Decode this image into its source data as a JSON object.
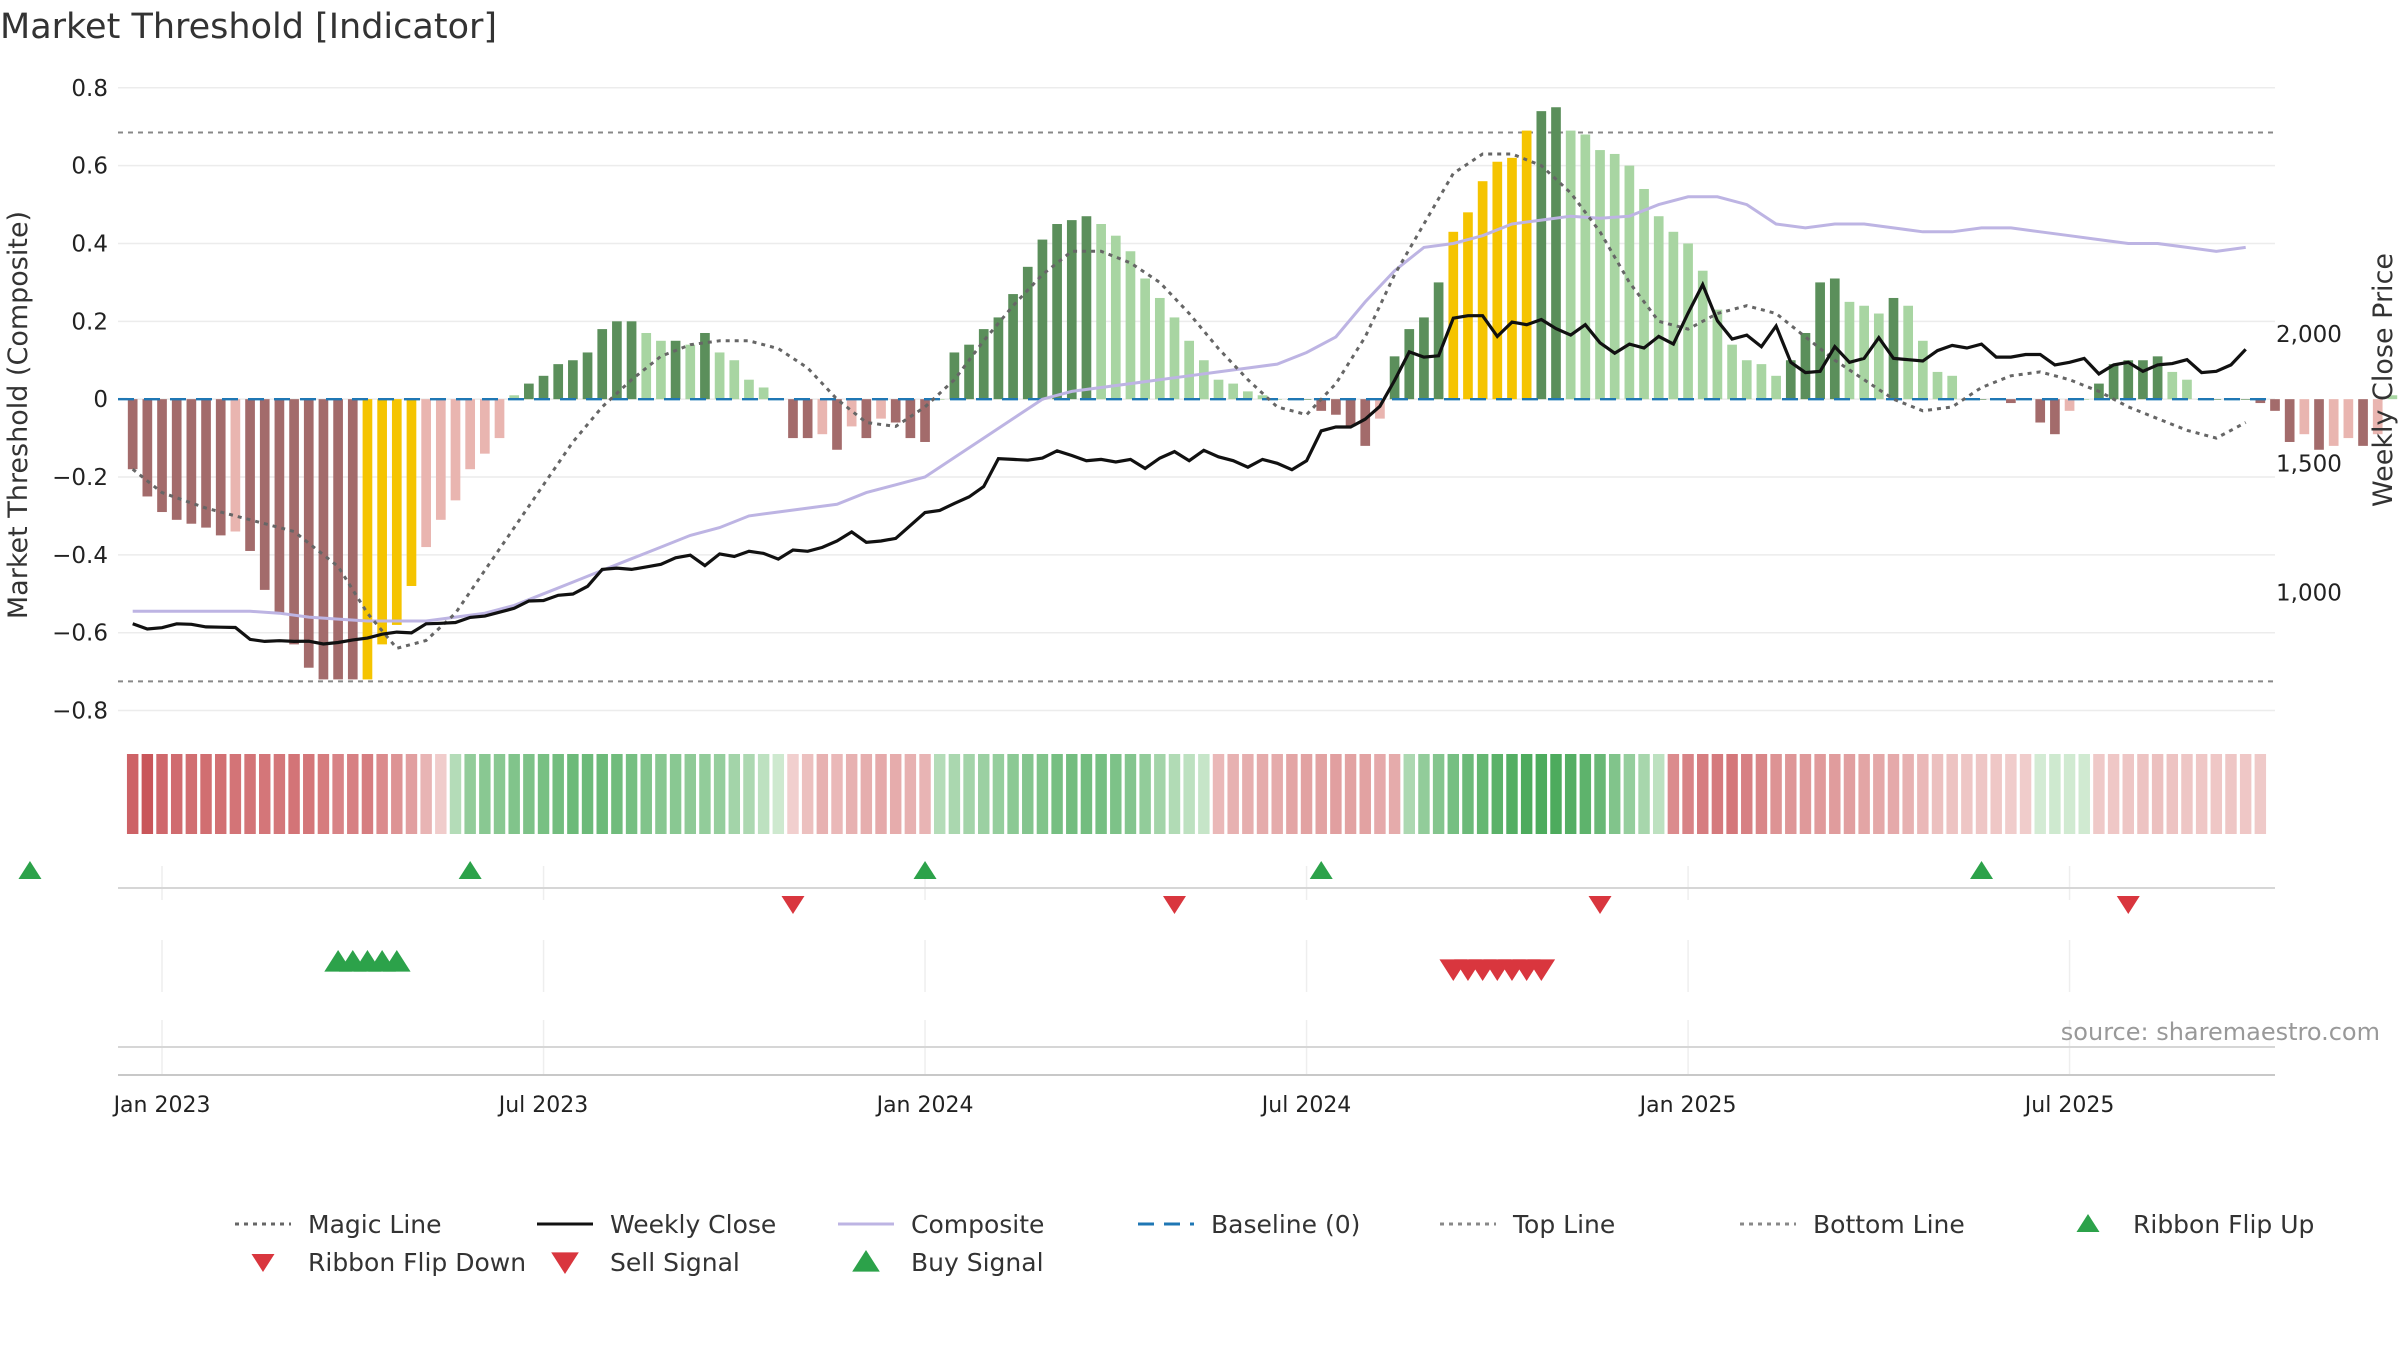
{
  "title": "Market Threshold [Indicator]",
  "source_text": "source: sharemaestro.com",
  "colors": {
    "green_dark": "#5b8f5b",
    "green_light": "#a8d5a2",
    "red_dark": "#a36b6b",
    "red_light": "#e9b5b0",
    "gold": "#f5c400",
    "composite": "#bdb4e3",
    "weekly_close": "#111111",
    "magic_line": "#666666",
    "baseline": "#1f77b4",
    "threshold_line": "#888888",
    "buy_signal": "#2ca24a",
    "sell_signal": "#d9363e"
  },
  "chart_data": {
    "type": "bar",
    "title": "Market Threshold [Indicator]",
    "ylabel": "Market Threshold (Composite)",
    "y2label": "Weekly Close Price",
    "ylim": [
      -0.85,
      0.82
    ],
    "y2lim": [
      470,
      2980
    ],
    "yticks": [
      -0.8,
      -0.6,
      -0.4,
      -0.2,
      0,
      0.2,
      0.4,
      0.6,
      0.8
    ],
    "ytick_labels": [
      "−0.8",
      "−0.6",
      "−0.4",
      "−0.2",
      "0",
      "0.2",
      "0.4",
      "0.6",
      "0.8"
    ],
    "y2ticks": [
      1000,
      1500,
      2000
    ],
    "y2tick_labels": [
      "1,000",
      "1,500",
      "2,000"
    ],
    "x_range": [
      -3,
      144
    ],
    "x_ticks": [
      {
        "week": 0,
        "label": "Jan 2023"
      },
      {
        "week": 26,
        "label": "Jul 2023"
      },
      {
        "week": 52,
        "label": "Jan 2024"
      },
      {
        "week": 78,
        "label": "Jul 2024"
      },
      {
        "week": 104,
        "label": "Jan 2025"
      },
      {
        "week": 130,
        "label": "Jul 2025"
      }
    ],
    "top_line": 0.685,
    "bottom_line": -0.725,
    "baseline": 0,
    "histogram": [
      -0.18,
      -0.25,
      -0.29,
      -0.31,
      -0.32,
      -0.33,
      -0.35,
      -0.34,
      -0.39,
      -0.49,
      -0.55,
      -0.63,
      -0.69,
      -0.72,
      -0.72,
      -0.72,
      -0.72,
      -0.63,
      -0.58,
      -0.48,
      -0.38,
      -0.31,
      -0.26,
      -0.18,
      -0.14,
      -0.1,
      0.01,
      0.04,
      0.06,
      0.09,
      0.1,
      0.12,
      0.18,
      0.2,
      0.2,
      0.17,
      0.15,
      0.15,
      0.14,
      0.17,
      0.12,
      0.1,
      0.05,
      0.03,
      0,
      -0.1,
      -0.1,
      -0.09,
      -0.13,
      -0.07,
      -0.1,
      -0.05,
      -0.06,
      -0.1,
      -0.11,
      0,
      0.12,
      0.14,
      0.18,
      0.21,
      0.27,
      0.34,
      0.41,
      0.45,
      0.46,
      0.47,
      0.45,
      0.42,
      0.38,
      0.31,
      0.26,
      0.21,
      0.15,
      0.1,
      0.05,
      0.04,
      0.02,
      0.01,
      0,
      0,
      0,
      -0.03,
      -0.04,
      -0.07,
      -0.12,
      -0.05,
      0.11,
      0.18,
      0.21,
      0.3,
      0.43,
      0.48,
      0.56,
      0.61,
      0.62,
      0.69,
      0.74,
      0.75,
      0.69,
      0.68,
      0.64,
      0.63,
      0.6,
      0.54,
      0.47,
      0.43,
      0.4,
      0.33,
      0.23,
      0.14,
      0.1,
      0.09,
      0.06,
      0.1,
      0.17,
      0.3,
      0.31,
      0.25,
      0.24,
      0.22,
      0.26,
      0.24,
      0.15,
      0.07,
      0.06,
      0,
      0,
      0,
      -0.01,
      0,
      -0.06,
      -0.09,
      -0.03,
      0,
      0.04,
      0.09,
      0.1,
      0.1,
      0.11,
      0.07,
      0.05,
      0,
      0,
      0,
      0,
      -0.01,
      -0.03,
      -0.11,
      -0.09,
      -0.13,
      -0.12,
      -0.1,
      -0.12,
      -0.09,
      0.01
    ],
    "gold_bars": [
      14,
      15,
      16,
      17,
      88,
      89,
      90,
      91,
      92,
      93
    ],
    "magic_line": [
      [
        -2,
        -0.18
      ],
      [
        0,
        -0.24
      ],
      [
        3,
        -0.28
      ],
      [
        6,
        -0.31
      ],
      [
        9,
        -0.34
      ],
      [
        12,
        -0.43
      ],
      [
        14,
        -0.55
      ],
      [
        16,
        -0.64
      ],
      [
        18,
        -0.62
      ],
      [
        20,
        -0.55
      ],
      [
        22,
        -0.44
      ],
      [
        24,
        -0.33
      ],
      [
        26,
        -0.22
      ],
      [
        28,
        -0.11
      ],
      [
        30,
        -0.02
      ],
      [
        32,
        0.05
      ],
      [
        34,
        0.11
      ],
      [
        36,
        0.14
      ],
      [
        38,
        0.15
      ],
      [
        40,
        0.15
      ],
      [
        42,
        0.13
      ],
      [
        44,
        0.08
      ],
      [
        46,
        0.0
      ],
      [
        48,
        -0.06
      ],
      [
        50,
        -0.07
      ],
      [
        52,
        -0.02
      ],
      [
        54,
        0.05
      ],
      [
        56,
        0.15
      ],
      [
        58,
        0.24
      ],
      [
        60,
        0.32
      ],
      [
        62,
        0.38
      ],
      [
        64,
        0.38
      ],
      [
        66,
        0.35
      ],
      [
        68,
        0.3
      ],
      [
        70,
        0.22
      ],
      [
        72,
        0.13
      ],
      [
        74,
        0.05
      ],
      [
        76,
        -0.02
      ],
      [
        78,
        -0.04
      ],
      [
        80,
        0.04
      ],
      [
        82,
        0.16
      ],
      [
        84,
        0.32
      ],
      [
        86,
        0.45
      ],
      [
        88,
        0.58
      ],
      [
        90,
        0.63
      ],
      [
        92,
        0.63
      ],
      [
        94,
        0.6
      ],
      [
        96,
        0.53
      ],
      [
        98,
        0.43
      ],
      [
        100,
        0.3
      ],
      [
        102,
        0.2
      ],
      [
        104,
        0.18
      ],
      [
        106,
        0.22
      ],
      [
        108,
        0.24
      ],
      [
        110,
        0.22
      ],
      [
        112,
        0.16
      ],
      [
        114,
        0.1
      ],
      [
        116,
        0.05
      ],
      [
        118,
        0.0
      ],
      [
        120,
        -0.03
      ],
      [
        122,
        -0.02
      ],
      [
        124,
        0.03
      ],
      [
        126,
        0.06
      ],
      [
        128,
        0.07
      ],
      [
        130,
        0.05
      ],
      [
        132,
        0.02
      ],
      [
        134,
        -0.02
      ],
      [
        136,
        -0.05
      ],
      [
        138,
        -0.08
      ],
      [
        140,
        -0.1
      ],
      [
        142,
        -0.06
      ]
    ],
    "composite": [
      [
        -2,
        -0.545
      ],
      [
        0,
        -0.545
      ],
      [
        3,
        -0.545
      ],
      [
        6,
        -0.545
      ],
      [
        8,
        -0.55
      ],
      [
        10,
        -0.56
      ],
      [
        12,
        -0.565
      ],
      [
        14,
        -0.57
      ],
      [
        16,
        -0.57
      ],
      [
        18,
        -0.57
      ],
      [
        20,
        -0.56
      ],
      [
        22,
        -0.55
      ],
      [
        24,
        -0.53
      ],
      [
        26,
        -0.5
      ],
      [
        28,
        -0.47
      ],
      [
        30,
        -0.44
      ],
      [
        32,
        -0.41
      ],
      [
        34,
        -0.38
      ],
      [
        36,
        -0.35
      ],
      [
        38,
        -0.33
      ],
      [
        40,
        -0.3
      ],
      [
        42,
        -0.29
      ],
      [
        44,
        -0.28
      ],
      [
        46,
        -0.27
      ],
      [
        48,
        -0.24
      ],
      [
        50,
        -0.22
      ],
      [
        52,
        -0.2
      ],
      [
        54,
        -0.15
      ],
      [
        56,
        -0.1
      ],
      [
        58,
        -0.05
      ],
      [
        60,
        0.0
      ],
      [
        62,
        0.02
      ],
      [
        64,
        0.03
      ],
      [
        66,
        0.04
      ],
      [
        68,
        0.05
      ],
      [
        70,
        0.06
      ],
      [
        72,
        0.07
      ],
      [
        74,
        0.08
      ],
      [
        76,
        0.09
      ],
      [
        78,
        0.12
      ],
      [
        80,
        0.16
      ],
      [
        82,
        0.25
      ],
      [
        84,
        0.33
      ],
      [
        86,
        0.39
      ],
      [
        88,
        0.4
      ],
      [
        90,
        0.42
      ],
      [
        92,
        0.45
      ],
      [
        94,
        0.46
      ],
      [
        96,
        0.47
      ],
      [
        98,
        0.465
      ],
      [
        100,
        0.47
      ],
      [
        102,
        0.5
      ],
      [
        104,
        0.52
      ],
      [
        106,
        0.52
      ],
      [
        108,
        0.5
      ],
      [
        110,
        0.45
      ],
      [
        112,
        0.44
      ],
      [
        114,
        0.45
      ],
      [
        116,
        0.45
      ],
      [
        118,
        0.44
      ],
      [
        120,
        0.43
      ],
      [
        122,
        0.43
      ],
      [
        124,
        0.44
      ],
      [
        126,
        0.44
      ],
      [
        128,
        0.43
      ],
      [
        130,
        0.42
      ],
      [
        132,
        0.41
      ],
      [
        134,
        0.4
      ],
      [
        136,
        0.4
      ],
      [
        138,
        0.39
      ],
      [
        140,
        0.38
      ],
      [
        142,
        0.39
      ]
    ],
    "weekly_close": [
      [
        -2,
        880
      ],
      [
        -1,
        860
      ],
      [
        0,
        865
      ],
      [
        1,
        880
      ],
      [
        2,
        878
      ],
      [
        3,
        868
      ],
      [
        4,
        867
      ],
      [
        5,
        866
      ],
      [
        6,
        820
      ],
      [
        7,
        812
      ],
      [
        8,
        815
      ],
      [
        9,
        812
      ],
      [
        10,
        813
      ],
      [
        11,
        802
      ],
      [
        12,
        808
      ],
      [
        13,
        818
      ],
      [
        14,
        825
      ],
      [
        15,
        840
      ],
      [
        16,
        848
      ],
      [
        17,
        845
      ],
      [
        18,
        880
      ],
      [
        19,
        882
      ],
      [
        20,
        885
      ],
      [
        21,
        905
      ],
      [
        22,
        910
      ],
      [
        23,
        925
      ],
      [
        24,
        940
      ],
      [
        25,
        968
      ],
      [
        26,
        970
      ],
      [
        27,
        990
      ],
      [
        28,
        995
      ],
      [
        29,
        1025
      ],
      [
        30,
        1090
      ],
      [
        31,
        1095
      ],
      [
        32,
        1090
      ],
      [
        33,
        1100
      ],
      [
        34,
        1110
      ],
      [
        35,
        1135
      ],
      [
        36,
        1145
      ],
      [
        37,
        1105
      ],
      [
        38,
        1150
      ],
      [
        39,
        1140
      ],
      [
        40,
        1160
      ],
      [
        41,
        1152
      ],
      [
        42,
        1130
      ],
      [
        43,
        1165
      ],
      [
        44,
        1160
      ],
      [
        45,
        1175
      ],
      [
        46,
        1200
      ],
      [
        47,
        1235
      ],
      [
        48,
        1195
      ],
      [
        49,
        1200
      ],
      [
        50,
        1210
      ],
      [
        51,
        1260
      ],
      [
        52,
        1310
      ],
      [
        53,
        1318
      ],
      [
        54,
        1345
      ],
      [
        55,
        1370
      ],
      [
        56,
        1410
      ],
      [
        57,
        1518
      ],
      [
        58,
        1515
      ],
      [
        59,
        1512
      ],
      [
        60,
        1520
      ],
      [
        61,
        1548
      ],
      [
        62,
        1530
      ],
      [
        63,
        1510
      ],
      [
        64,
        1515
      ],
      [
        65,
        1505
      ],
      [
        66,
        1515
      ],
      [
        67,
        1480
      ],
      [
        68,
        1520
      ],
      [
        69,
        1545
      ],
      [
        70,
        1510
      ],
      [
        71,
        1550
      ],
      [
        72,
        1525
      ],
      [
        73,
        1510
      ],
      [
        74,
        1485
      ],
      [
        75,
        1515
      ],
      [
        76,
        1500
      ],
      [
        77,
        1475
      ],
      [
        78,
        1510
      ],
      [
        79,
        1625
      ],
      [
        80,
        1640
      ],
      [
        81,
        1640
      ],
      [
        82,
        1670
      ],
      [
        83,
        1720
      ],
      [
        84,
        1820
      ],
      [
        85,
        1930
      ],
      [
        86,
        1910
      ],
      [
        87,
        1915
      ],
      [
        88,
        2060
      ],
      [
        89,
        2070
      ],
      [
        90,
        2070
      ],
      [
        91,
        1990
      ],
      [
        92,
        2045
      ],
      [
        93,
        2035
      ],
      [
        94,
        2055
      ],
      [
        95,
        2020
      ],
      [
        96,
        1995
      ],
      [
        97,
        2035
      ],
      [
        98,
        1965
      ],
      [
        99,
        1925
      ],
      [
        100,
        1960
      ],
      [
        101,
        1945
      ],
      [
        102,
        1990
      ],
      [
        103,
        1960
      ],
      [
        104,
        2080
      ],
      [
        105,
        2190
      ],
      [
        106,
        2050
      ],
      [
        107,
        1980
      ],
      [
        108,
        1995
      ],
      [
        109,
        1950
      ],
      [
        110,
        2030
      ],
      [
        111,
        1890
      ],
      [
        112,
        1850
      ],
      [
        113,
        1855
      ],
      [
        114,
        1950
      ],
      [
        115,
        1890
      ],
      [
        116,
        1905
      ],
      [
        117,
        1985
      ],
      [
        118,
        1905
      ],
      [
        119,
        1900
      ],
      [
        120,
        1895
      ],
      [
        121,
        1935
      ],
      [
        122,
        1955
      ],
      [
        123,
        1945
      ],
      [
        124,
        1960
      ],
      [
        125,
        1910
      ],
      [
        126,
        1910
      ],
      [
        127,
        1920
      ],
      [
        128,
        1920
      ],
      [
        129,
        1880
      ],
      [
        130,
        1890
      ],
      [
        131,
        1905
      ],
      [
        132,
        1845
      ],
      [
        133,
        1880
      ],
      [
        134,
        1890
      ],
      [
        135,
        1855
      ],
      [
        136,
        1880
      ],
      [
        137,
        1885
      ],
      [
        138,
        1900
      ],
      [
        139,
        1850
      ],
      [
        140,
        1855
      ],
      [
        141,
        1880
      ],
      [
        142,
        1940
      ]
    ],
    "ribbon": [
      -0.82,
      -0.9,
      -0.78,
      -0.76,
      -0.74,
      -0.74,
      -0.73,
      -0.7,
      -0.7,
      -0.69,
      -0.68,
      -0.7,
      -0.69,
      -0.65,
      -0.6,
      -0.62,
      -0.64,
      -0.55,
      -0.5,
      -0.42,
      -0.28,
      -0.12,
      0.3,
      0.5,
      0.55,
      0.55,
      0.6,
      0.62,
      0.65,
      0.68,
      0.72,
      0.72,
      0.72,
      0.7,
      0.66,
      0.6,
      0.56,
      0.55,
      0.52,
      0.5,
      0.48,
      0.4,
      0.35,
      0.25,
      0.15,
      -0.1,
      -0.2,
      -0.3,
      -0.25,
      -0.3,
      -0.32,
      -0.35,
      -0.33,
      -0.3,
      -0.28,
      0.3,
      0.36,
      0.4,
      0.45,
      0.48,
      0.54,
      0.58,
      0.6,
      0.66,
      0.68,
      0.68,
      0.66,
      0.62,
      0.58,
      0.5,
      0.4,
      0.32,
      0.25,
      0.2,
      -0.25,
      -0.3,
      -0.32,
      -0.34,
      -0.34,
      -0.38,
      -0.4,
      -0.4,
      -0.42,
      -0.4,
      -0.4,
      -0.35,
      -0.34,
      0.35,
      0.5,
      0.58,
      0.66,
      0.72,
      0.76,
      0.82,
      0.86,
      0.9,
      0.9,
      0.9,
      0.86,
      0.8,
      0.74,
      0.6,
      0.48,
      0.38,
      0.25,
      -0.55,
      -0.6,
      -0.64,
      -0.66,
      -0.68,
      -0.62,
      -0.58,
      -0.5,
      -0.48,
      -0.46,
      -0.45,
      -0.44,
      -0.42,
      -0.38,
      -0.36,
      -0.35,
      -0.3,
      -0.25,
      -0.2,
      -0.18,
      -0.16,
      -0.16,
      -0.15,
      -0.12,
      -0.12,
      0.12,
      0.15,
      0.14,
      0.14,
      -0.14,
      -0.15,
      -0.16,
      -0.18,
      -0.2,
      -0.18,
      -0.16,
      -0.15,
      -0.15,
      -0.16,
      -0.15,
      -0.14
    ],
    "ribbon_flip_up": [
      -9,
      21,
      52,
      79,
      124
    ],
    "ribbon_flip_down": [
      43,
      69,
      98,
      134
    ],
    "buy_signal": [
      12,
      13,
      14,
      15,
      16
    ],
    "sell_signal": [
      88,
      89,
      90,
      91,
      92,
      93,
      94
    ],
    "legend": [
      {
        "label": "Magic Line",
        "kind": "dotted-line",
        "color": "#666666"
      },
      {
        "label": "Weekly Close",
        "kind": "solid-line",
        "color": "#111111"
      },
      {
        "label": "Composite",
        "kind": "solid-line",
        "color": "#bdb4e3"
      },
      {
        "label": "Baseline (0)",
        "kind": "dashed-line",
        "color": "#1f77b4"
      },
      {
        "label": "Top Line",
        "kind": "dotted-line",
        "color": "#888888"
      },
      {
        "label": "Bottom Line",
        "kind": "dotted-line",
        "color": "#888888"
      },
      {
        "label": "Ribbon Flip Up",
        "kind": "triangle-up",
        "color": "#2ca24a"
      },
      {
        "label": "Ribbon Flip Down",
        "kind": "triangle-down",
        "color": "#d9363e"
      },
      {
        "label": "Sell Signal",
        "kind": "triangle-down-large",
        "color": "#d9363e"
      },
      {
        "label": "Buy Signal",
        "kind": "triangle-up-large",
        "color": "#2ca24a"
      }
    ]
  }
}
